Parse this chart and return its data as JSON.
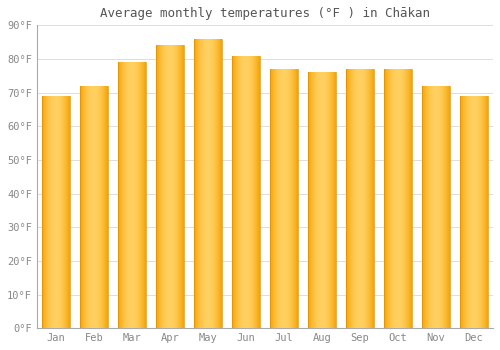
{
  "title": "Average monthly temperatures (°F ) in Chākan",
  "months": [
    "Jan",
    "Feb",
    "Mar",
    "Apr",
    "May",
    "Jun",
    "Jul",
    "Aug",
    "Sep",
    "Oct",
    "Nov",
    "Dec"
  ],
  "values": [
    69,
    72,
    79,
    84,
    86,
    81,
    77,
    76,
    77,
    77,
    72,
    69
  ],
  "bar_color_center": "#FFD060",
  "bar_color_edge": "#F5A000",
  "background_color": "#FFFFFF",
  "grid_color": "#DDDDDD",
  "ylim": [
    0,
    90
  ],
  "yticks": [
    0,
    10,
    20,
    30,
    40,
    50,
    60,
    70,
    80,
    90
  ],
  "ytick_labels": [
    "0°F",
    "10°F",
    "20°F",
    "30°F",
    "40°F",
    "50°F",
    "60°F",
    "70°F",
    "80°F",
    "90°F"
  ],
  "title_fontsize": 9,
  "tick_fontsize": 7.5,
  "tick_color": "#888888",
  "bar_width": 0.75,
  "n_gradient_strips": 100
}
